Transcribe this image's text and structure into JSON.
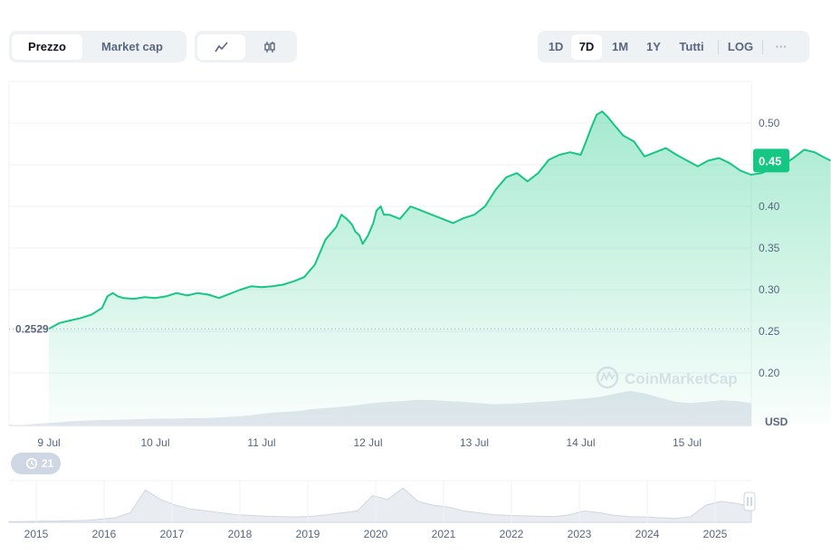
{
  "tabs": {
    "price_label": "Prezzo",
    "marketcap_label": "Market cap"
  },
  "chart_types": {
    "line_icon": "line-chart-icon",
    "candle_icon": "candlestick-icon"
  },
  "ranges": {
    "items": [
      "1D",
      "7D",
      "1M",
      "1Y",
      "Tutti"
    ],
    "active": "7D",
    "log_label": "LOG",
    "more_label": "···"
  },
  "badge": {
    "icon": "history-icon",
    "count": "21"
  },
  "watermark": "CoinMarketCap",
  "colors": {
    "line": "#16c784",
    "badge": "#16c784",
    "area_top": "#16c784",
    "grid": "#eff2f5"
  },
  "chart_data": {
    "type": "area",
    "currency": "USD",
    "start_label": "0.2529",
    "current_label": "0.45",
    "x_ticks": [
      "9 Jul",
      "10 Jul",
      "11 Jul",
      "12 Jul",
      "13 Jul",
      "14 Jul",
      "15 Jul"
    ],
    "y_ticks": [
      "0.50",
      "0.45",
      "0.40",
      "0.35",
      "0.30",
      "0.25",
      "0.20"
    ],
    "ylim": [
      0.15,
      0.55
    ],
    "xlim_days": [
      0,
      7.35
    ],
    "series": [
      {
        "x": [
          0.0,
          0.1,
          0.2,
          0.3,
          0.4,
          0.5,
          0.55,
          0.6,
          0.65,
          0.7,
          0.8,
          0.9,
          1.0,
          1.1,
          1.2,
          1.3,
          1.4,
          1.5,
          1.6,
          1.7,
          1.8,
          1.9,
          2.0,
          2.1,
          2.2,
          2.3,
          2.4,
          2.5,
          2.6,
          2.7,
          2.75,
          2.8,
          2.85,
          2.88,
          2.92,
          2.95,
          3.0,
          3.05,
          3.08,
          3.12,
          3.15,
          3.2,
          3.3,
          3.4,
          3.5,
          3.6,
          3.7,
          3.8,
          3.9,
          4.0,
          4.1,
          4.2,
          4.3,
          4.4,
          4.5,
          4.6,
          4.7,
          4.8,
          4.9,
          5.0,
          5.05,
          5.1,
          5.15,
          5.2,
          5.25,
          5.3,
          5.4,
          5.5,
          5.6,
          5.7,
          5.8,
          5.9,
          6.0,
          6.1,
          6.2,
          6.3,
          6.4,
          6.5,
          6.6,
          6.7,
          6.8,
          6.9,
          7.0,
          7.1,
          7.2,
          7.3,
          7.35
        ],
        "y": [
          0.2529,
          0.26,
          0.263,
          0.266,
          0.27,
          0.278,
          0.292,
          0.296,
          0.292,
          0.29,
          0.289,
          0.291,
          0.29,
          0.292,
          0.296,
          0.293,
          0.296,
          0.294,
          0.29,
          0.295,
          0.3,
          0.304,
          0.303,
          0.304,
          0.306,
          0.31,
          0.315,
          0.33,
          0.36,
          0.375,
          0.39,
          0.385,
          0.378,
          0.37,
          0.365,
          0.355,
          0.365,
          0.38,
          0.395,
          0.4,
          0.39,
          0.39,
          0.385,
          0.4,
          0.395,
          0.39,
          0.385,
          0.38,
          0.386,
          0.39,
          0.4,
          0.42,
          0.435,
          0.44,
          0.43,
          0.44,
          0.456,
          0.462,
          0.465,
          0.462,
          0.478,
          0.495,
          0.51,
          0.514,
          0.508,
          0.5,
          0.485,
          0.478,
          0.46,
          0.465,
          0.47,
          0.462,
          0.455,
          0.448,
          0.455,
          0.458,
          0.452,
          0.443,
          0.438,
          0.44,
          0.445,
          0.45,
          0.458,
          0.468,
          0.465,
          0.458,
          0.455
        ]
      }
    ],
    "volume_relative": [
      0.0,
      0.02,
      0.05,
      0.07,
      0.1,
      0.12,
      0.13,
      0.14,
      0.15,
      0.16,
      0.17,
      0.17,
      0.18,
      0.18,
      0.2,
      0.22,
      0.25,
      0.3,
      0.33,
      0.35,
      0.4,
      0.43,
      0.46,
      0.5,
      0.55,
      0.58,
      0.6,
      0.63,
      0.62,
      0.6,
      0.58,
      0.55,
      0.52,
      0.53,
      0.55,
      0.58,
      0.6,
      0.63,
      0.66,
      0.7,
      0.78,
      0.85,
      0.78,
      0.68,
      0.58,
      0.55,
      0.58,
      0.62,
      0.6,
      0.55
    ],
    "navigator": {
      "years": [
        "2015",
        "2016",
        "2017",
        "2018",
        "2019",
        "2020",
        "2021",
        "2022",
        "2023",
        "2024",
        "2025"
      ],
      "relative": [
        0.02,
        0.02,
        0.03,
        0.03,
        0.04,
        0.05,
        0.08,
        0.12,
        0.25,
        0.85,
        0.6,
        0.45,
        0.35,
        0.3,
        0.25,
        0.2,
        0.18,
        0.16,
        0.15,
        0.14,
        0.16,
        0.2,
        0.25,
        0.3,
        0.7,
        0.6,
        0.9,
        0.55,
        0.45,
        0.4,
        0.3,
        0.25,
        0.2,
        0.18,
        0.17,
        0.16,
        0.15,
        0.2,
        0.3,
        0.25,
        0.18,
        0.15,
        0.14,
        0.12,
        0.1,
        0.15,
        0.45,
        0.55,
        0.5,
        0.4
      ]
    }
  }
}
